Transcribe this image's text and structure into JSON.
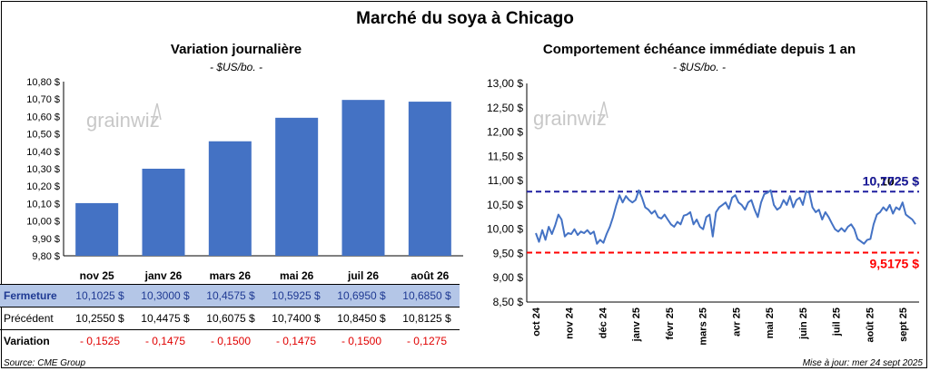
{
  "title": "Marché du soya à Chicago",
  "left_panel": {
    "title": "Variation journalière",
    "unit": "- $US/bo. -"
  },
  "right_panel": {
    "title": "Comportement  échéance immédiate depuis 1 an",
    "unit": "- $US/bo. -"
  },
  "watermark": "grainwiz",
  "table": {
    "rows": [
      {
        "label": "Fermeture",
        "values": [
          "10,1025  $",
          "10,3000  $",
          "10,4575  $",
          "10,5925  $",
          "10,6950  $",
          "10,6850  $"
        ]
      },
      {
        "label": "Précédent",
        "values": [
          "10,2550  $",
          "10,4475  $",
          "10,6075  $",
          "10,7400  $",
          "10,8450  $",
          "10,8125  $"
        ]
      },
      {
        "label": "Variation",
        "values": [
          "- 0,1525",
          "- 0,1475",
          "- 0,1500",
          "- 0,1475",
          "- 0,1500",
          "- 0,1275"
        ]
      }
    ]
  },
  "footer": {
    "source": "Source: CME Group",
    "updated": "Mise à jour: mer 24 sept 2025"
  },
  "colors": {
    "bar": "#4472c4",
    "line": "#4472c4",
    "max_line": "#1f1fa0",
    "min_line": "#ff0000"
  },
  "chart_data": [
    {
      "type": "bar",
      "title": "Variation journalière",
      "ylabel": "- $US/bo. -",
      "categories": [
        "nov 25",
        "janv 26",
        "mars 26",
        "mai 26",
        "juil 26",
        "août 26"
      ],
      "values": [
        10.1025,
        10.3,
        10.4575,
        10.5925,
        10.695,
        10.685
      ],
      "ylim": [
        9.8,
        10.8
      ],
      "y_ticks": [
        "9,80 $",
        "9,90 $",
        "10,00 $",
        "10,10 $",
        "10,20 $",
        "10,30 $",
        "10,40 $",
        "10,50 $",
        "10,60 $",
        "10,70 $",
        "10,80 $"
      ],
      "grid": false
    },
    {
      "type": "line",
      "title": "Comportement  échéance immédiate depuis 1 an",
      "ylabel": "- $US/bo. -",
      "x_ticks": [
        "oct 24",
        "nov 24",
        "déc 24",
        "janv 25",
        "févr 25",
        "mars 25",
        "avr 25",
        "mai 25",
        "juin 25",
        "juil 25",
        "août 25",
        "sept 25"
      ],
      "y_ticks": [
        "8,50 $",
        "9,00 $",
        "9,50 $",
        "10,00 $",
        "10,50 $",
        "11,00 $",
        "11,50 $",
        "12,00 $",
        "12,50 $",
        "13,00 $"
      ],
      "ylim": [
        8.5,
        13.0
      ],
      "series": [
        {
          "values": [
            9.92,
            9.74,
            9.98,
            9.78,
            10.05,
            9.9,
            10.08,
            10.3,
            10.2,
            9.85,
            9.92,
            9.9,
            10.0,
            9.88,
            9.95,
            9.92,
            9.98,
            9.9,
            9.95,
            9.7,
            9.78,
            9.72,
            9.9,
            10.05,
            10.25,
            10.5,
            10.7,
            10.55,
            10.68,
            10.6,
            10.55,
            10.6,
            10.8,
            10.65,
            10.45,
            10.4,
            10.32,
            10.38,
            10.25,
            10.22,
            10.3,
            10.2,
            10.1,
            10.05,
            10.15,
            10.1,
            10.28,
            10.3,
            10.35,
            10.1,
            10.2,
            10.05,
            10.0,
            10.25,
            10.3,
            9.85,
            10.35,
            10.45,
            10.5,
            10.55,
            10.42,
            10.65,
            10.7,
            10.55,
            10.5,
            10.4,
            10.55,
            10.6,
            10.4,
            10.25,
            10.55,
            10.72,
            10.75,
            10.8,
            10.5,
            10.4,
            10.45,
            10.6,
            10.5,
            10.68,
            10.45,
            10.6,
            10.65,
            10.5,
            10.78,
            10.75,
            10.45,
            10.35,
            10.4,
            10.2,
            10.35,
            10.25,
            10.12,
            10.0,
            9.95,
            10.02,
            9.95,
            10.05,
            10.1,
            10.0,
            9.8,
            9.75,
            9.7,
            9.78,
            9.8,
            10.1,
            10.3,
            10.35,
            10.45,
            10.38,
            10.5,
            10.32,
            10.45,
            10.4,
            10.55,
            10.3,
            10.25,
            10.2,
            10.1025
          ]
        }
      ],
      "reference_lines": [
        {
          "label": "10,7725 $",
          "value": 10.7725
        },
        {
          "label": "9,5175 $",
          "value": 9.5175
        }
      ],
      "annotation_overlap": "10,1025 $",
      "grid": false
    }
  ]
}
